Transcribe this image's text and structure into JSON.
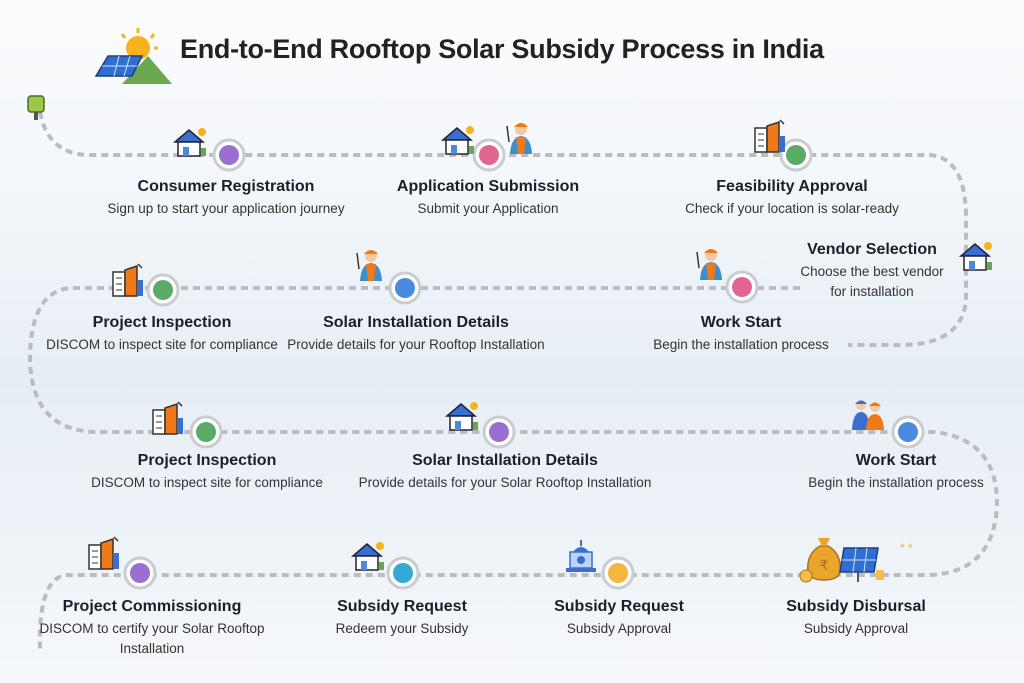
{
  "title": "End-to-End Rooftop Solar Subsidy Process in India",
  "colors": {
    "purple": "#9a6fd1",
    "pink": "#e0668f",
    "green": "#5aaa68",
    "blue": "#4a8be0",
    "cyan": "#33a9d3",
    "yellow": "#f5b53e",
    "path": "#b9bcc2"
  },
  "steps": [
    {
      "title": "Consumer Registration",
      "desc": "Sign up to start your application journey",
      "icon": "house-solar-icon",
      "color": "purple"
    },
    {
      "title": "Application Submission",
      "desc": "Submit your Application",
      "icon": "house-worker-icon",
      "color": "pink"
    },
    {
      "title": "Feasibility Approval",
      "desc": "Check if your location is solar-ready",
      "icon": "building-icon",
      "color": "green"
    },
    {
      "title": "Vendor Selection",
      "desc": "Choose the best vendor",
      "desc2": "for installation",
      "icon": "house-solar-icon"
    },
    {
      "title": "Work Start",
      "desc": "Begin the installation process",
      "icon": "worker-icon",
      "color": "pink"
    },
    {
      "title": "Solar Installation Details",
      "desc": "Provide details for your Rooftop Installation",
      "icon": "worker-icon",
      "color": "blue"
    },
    {
      "title": "Project Inspection",
      "desc": "DISCOM to inspect site for compliance",
      "icon": "building-icon",
      "color": "green"
    },
    {
      "title": "Project Inspection",
      "desc": "DISCOM to inspect site for compliance",
      "icon": "building-icon",
      "color": "green"
    },
    {
      "title": "Solar Installation Details",
      "desc": "Provide details for your Solar Rooftop Installation",
      "icon": "house-solar-icon",
      "color": "purple"
    },
    {
      "title": "Work Start",
      "desc": "Begin the installation process",
      "icon": "workers-icon",
      "color": "blue"
    },
    {
      "title": "Subsidy Disbursal",
      "desc": "Subsidy Approval",
      "icon": "money-bag-solar-icon"
    },
    {
      "title": "Subsidy Request",
      "desc": "Subsidy Approval",
      "icon": "government-building-icon",
      "color": "yellow"
    },
    {
      "title": "Subsidy Request",
      "desc": "Redeem your Subsidy",
      "icon": "house-solar-icon",
      "color": "cyan"
    },
    {
      "title": "Project Commissioning",
      "desc": "DISCOM to certify your Solar Rooftop",
      "desc2": "Installation",
      "icon": "building-icon",
      "color": "purple"
    }
  ]
}
